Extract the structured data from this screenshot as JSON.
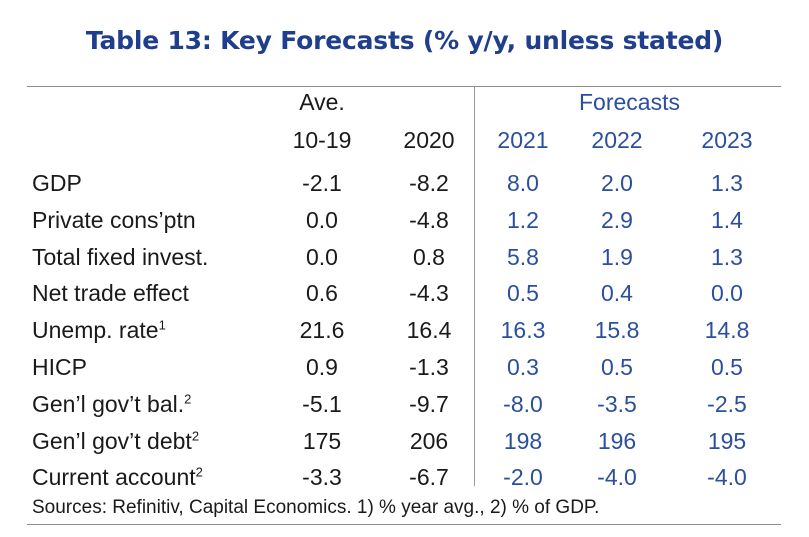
{
  "title": "Table 13: Key Forecasts (% y/y, unless stated)",
  "header": {
    "group_label": "Forecasts",
    "columns": [
      {
        "line1": "Ave.",
        "line2": "10-19"
      },
      {
        "line1": "",
        "line2": "2020"
      },
      {
        "line1": "",
        "line2": "2021"
      },
      {
        "line1": "",
        "line2": "2022"
      },
      {
        "line1": "",
        "line2": "2023"
      }
    ]
  },
  "rows": [
    {
      "label": "GDP",
      "note": "",
      "values": [
        "-2.1",
        "-8.2",
        "8.0",
        "2.0",
        "1.3"
      ]
    },
    {
      "label": "Private cons’ptn",
      "note": "",
      "values": [
        "0.0",
        "-4.8",
        "1.2",
        "2.9",
        "1.4"
      ]
    },
    {
      "label": "Total fixed invest.",
      "note": "",
      "values": [
        "0.0",
        "0.8",
        "5.8",
        "1.9",
        "1.3"
      ]
    },
    {
      "label": "Net trade effect",
      "note": "",
      "values": [
        "0.6",
        "-4.3",
        "0.5",
        "0.4",
        "0.0"
      ]
    },
    {
      "label": "Unemp. rate",
      "note": "1",
      "values": [
        "21.6",
        "16.4",
        "16.3",
        "15.8",
        "14.8"
      ]
    },
    {
      "label": "HICP",
      "note": "",
      "values": [
        "0.9",
        "-1.3",
        "0.3",
        "0.5",
        "0.5"
      ]
    },
    {
      "label": "Gen’l gov’t bal.",
      "note": "2",
      "values": [
        "-5.1",
        "-9.7",
        "-8.0",
        "-3.5",
        "-2.5"
      ]
    },
    {
      "label": "Gen’l gov’t debt",
      "note": "2",
      "values": [
        "175",
        "206",
        "198",
        "196",
        "195"
      ]
    },
    {
      "label": "Current account",
      "note": "2",
      "values": [
        "-3.3",
        "-6.7",
        "-2.0",
        "-4.0",
        "-4.0"
      ]
    }
  ],
  "source": "Sources: Refinitiv, Capital Economics. 1) % year avg., 2) % of GDP.",
  "colors": {
    "title": "#1f3e8c",
    "forecast": "#2b4f9e",
    "text": "#1a1a1a",
    "rule": "#8c8c8c"
  }
}
